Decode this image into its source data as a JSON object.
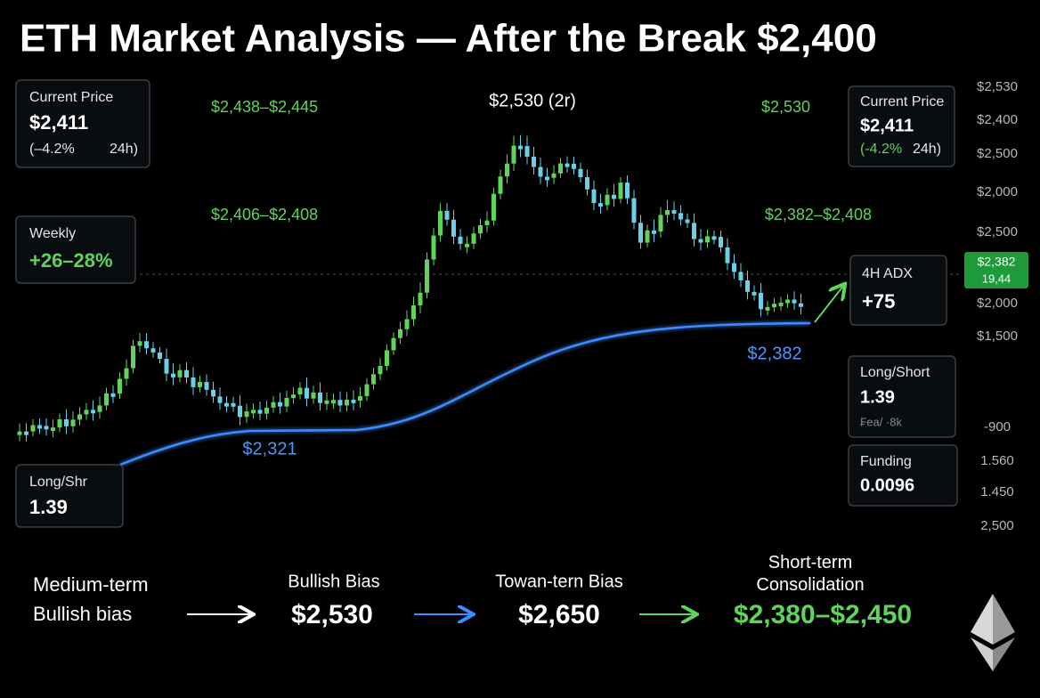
{
  "title": "ETH Market Analysis — After the Break $2,400",
  "cards": {
    "current_left": {
      "label": "Current Price",
      "value": "$2,411",
      "change": "(–4.2%",
      "period": "24h)"
    },
    "current_right": {
      "label": "Current Price",
      "value": "$2,411",
      "change": "(-4.2%",
      "period": "24h)"
    },
    "weekly": {
      "label": "Weekly",
      "value": "+26–28%"
    },
    "adx": {
      "label": "4H ADX",
      "value": "+75"
    },
    "long_short_right": {
      "label": "Long/Short",
      "value": "1.39",
      "note": "₣ea/ ·8k"
    },
    "funding": {
      "label": "Funding",
      "value": "0.0096"
    },
    "long_short_left": {
      "label": "Long/Shr",
      "value": "1.39"
    }
  },
  "price_badge": {
    "value": "$2,382",
    "sub": "19,44"
  },
  "levels": {
    "upper_left": "$2,438–$2,445",
    "upper_right": "$2,530",
    "middle_left": "$2,406–$2,408",
    "middle_right": "$2,382–$2,408",
    "peak": "$2,530 (2r)",
    "support_left": "$2,321",
    "support_right": "$2,382"
  },
  "axis_labels": [
    "$2,530",
    "$2,400",
    "$2,500",
    "$2,000",
    "$2,500",
    "$2,000",
    "$1,500",
    "-900",
    "1.560",
    "1.450",
    "2,500"
  ],
  "flow": {
    "start": [
      "Medium-term",
      "Bullish bias"
    ],
    "steps": [
      {
        "label": "Bullish Bias",
        "value": "$2,530"
      },
      {
        "label": "Towan-tern Bias",
        "value": "$2,650"
      },
      {
        "label": "Short-term Consolidation",
        "value": "$2,380–$2,450"
      }
    ]
  }
}
